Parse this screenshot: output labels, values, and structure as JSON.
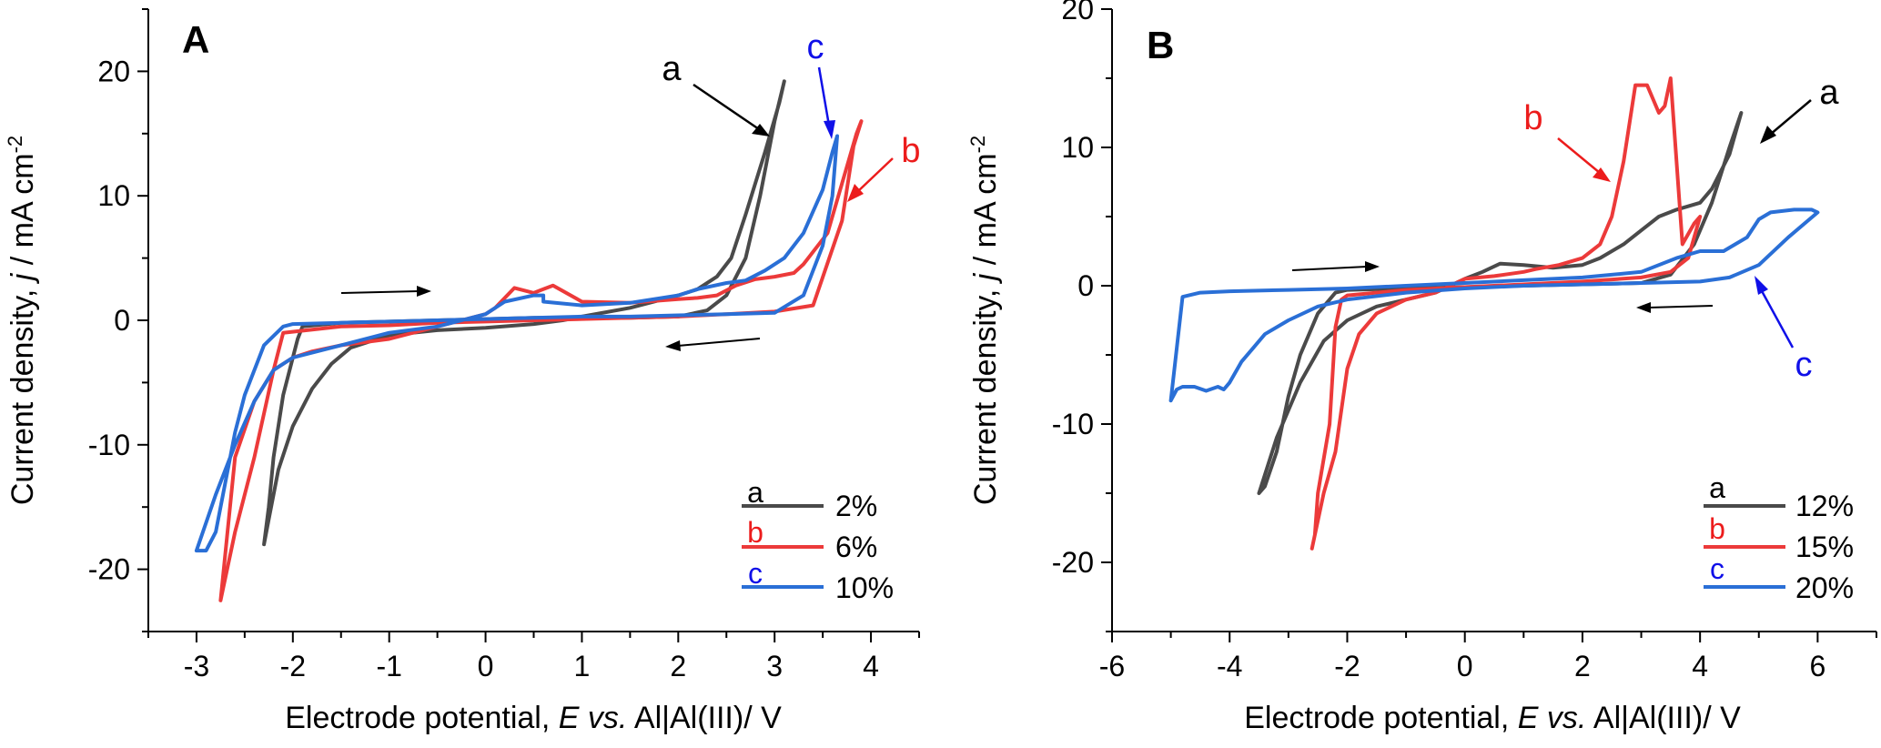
{
  "colors": {
    "a": "#4a4a4a",
    "b": "#ec3a3a",
    "c": "#2a6fd6",
    "c_label": "#1010e8",
    "b_label": "#ec1c1c",
    "a_label": "#000000",
    "arrow": "#000000"
  },
  "chart_data": [
    {
      "type": "line",
      "panel_label": "A",
      "xlabel_prefix": "Electrode potential, ",
      "xlabel_var": "E vs.",
      "xlabel_suffix": " Al|Al(III)/ V",
      "ylabel_prefix": "Current density, ",
      "ylabel_var": "j",
      "ylabel_suffix": " / mA cm",
      "ylabel_sup": "-2",
      "xlim": [
        -3.5,
        4.5
      ],
      "ylim": [
        -25,
        25
      ],
      "xticks": [
        "-3",
        "-2",
        "-1",
        "0",
        "1",
        "2",
        "3",
        "4"
      ],
      "xtick_values": [
        -3,
        -2,
        -1,
        0,
        1,
        2,
        3,
        4
      ],
      "yticks": [
        "-20",
        "-10",
        "0",
        "10",
        "20"
      ],
      "ytick_values": [
        -20,
        -10,
        0,
        10,
        20
      ],
      "legend": [
        {
          "key": "a",
          "label": "2%"
        },
        {
          "key": "b",
          "label": "6%"
        },
        {
          "key": "c",
          "label": "10%"
        }
      ],
      "curve_labels": [
        {
          "key": "a",
          "text": "a"
        },
        {
          "key": "b",
          "text": "b"
        },
        {
          "key": "c",
          "text": "c"
        }
      ],
      "series": [
        {
          "key": "a",
          "x": [
            -2.3,
            -2.25,
            -2.2,
            -2.1,
            -2.0,
            -1.95,
            -1.9,
            -1.5,
            -1.0,
            -0.5,
            0.0,
            0.5,
            1.0,
            1.5,
            2.0,
            2.3,
            2.5,
            2.7,
            2.85,
            3.0,
            3.1,
            3.05,
            2.9,
            2.7,
            2.55,
            2.4,
            2.2,
            2.0,
            1.5,
            1.0,
            0.8,
            0.5,
            0.0,
            -0.5,
            -1.0,
            -1.4,
            -1.6,
            -1.8,
            -2.0,
            -2.15,
            -2.25,
            -2.3
          ],
          "y": [
            -18,
            -15,
            -11,
            -6,
            -3,
            -1.5,
            -0.5,
            -0.2,
            -0.1,
            0.0,
            0.1,
            0.2,
            0.2,
            0.2,
            0.3,
            0.8,
            2.0,
            5.0,
            10.0,
            16.0,
            19.2,
            17.5,
            13.5,
            8.5,
            5.0,
            3.5,
            2.5,
            2.0,
            1.0,
            0.3,
            0.0,
            -0.3,
            -0.6,
            -0.8,
            -1.2,
            -2.2,
            -3.5,
            -5.5,
            -8.5,
            -12,
            -16,
            -18
          ]
        },
        {
          "key": "b",
          "x": [
            -2.75,
            -2.6,
            -2.4,
            -2.2,
            -2.1,
            -1.5,
            -1.0,
            -0.5,
            0.0,
            0.5,
            1.0,
            1.5,
            2.0,
            2.5,
            3.0,
            3.4,
            3.7,
            3.82,
            3.9,
            3.85,
            3.7,
            3.55,
            3.3,
            3.2,
            3.0,
            2.8,
            2.6,
            2.4,
            2.2,
            2.0,
            1.5,
            1.0,
            0.7,
            0.6,
            0.5,
            0.4,
            0.3,
            0.1,
            0.0,
            -0.5,
            -1.0,
            -1.5,
            -1.8,
            -2.0,
            -2.2,
            -2.4,
            -2.6,
            -2.75
          ],
          "y": [
            -22.5,
            -17,
            -11,
            -4,
            -1,
            -0.5,
            -0.4,
            -0.2,
            -0.1,
            0.0,
            0.1,
            0.2,
            0.3,
            0.5,
            0.7,
            1.2,
            8.0,
            14.0,
            16.0,
            15.0,
            11.0,
            7.0,
            4.5,
            3.8,
            3.5,
            3.3,
            2.8,
            2.0,
            1.8,
            1.7,
            1.4,
            1.5,
            2.8,
            2.5,
            2.2,
            2.4,
            2.6,
            1.0,
            0.5,
            -0.5,
            -1.5,
            -2.0,
            -2.5,
            -3.0,
            -4.0,
            -6.5,
            -11,
            -22.5
          ]
        },
        {
          "key": "c",
          "x": [
            -3.0,
            -2.9,
            -2.8,
            -2.7,
            -2.6,
            -2.5,
            -2.3,
            -2.1,
            -2.0,
            -1.5,
            -1.0,
            -0.5,
            0.0,
            0.5,
            1.0,
            1.5,
            2.0,
            2.5,
            3.0,
            3.3,
            3.5,
            3.6,
            3.65,
            3.6,
            3.5,
            3.3,
            3.1,
            2.9,
            2.7,
            2.5,
            2.2,
            2.0,
            1.5,
            1.0,
            0.6,
            0.6,
            0.5,
            0.2,
            0.0,
            -0.5,
            -1.0,
            -1.5,
            -2.0,
            -2.2,
            -2.4,
            -2.6,
            -2.8,
            -3.0
          ],
          "y": [
            -18.5,
            -18.5,
            -17,
            -13,
            -9,
            -6,
            -2,
            -0.5,
            -0.3,
            -0.2,
            -0.1,
            0.0,
            0.1,
            0.2,
            0.3,
            0.3,
            0.4,
            0.5,
            0.6,
            2.0,
            6.0,
            10.0,
            14.8,
            13.5,
            10.5,
            7.0,
            5.0,
            4.0,
            3.2,
            3.0,
            2.5,
            2.0,
            1.4,
            1.2,
            1.5,
            2.0,
            2.0,
            1.5,
            0.5,
            -0.5,
            -1.0,
            -2.0,
            -3.0,
            -4.0,
            -6.5,
            -10,
            -14,
            -18.5
          ]
        }
      ]
    },
    {
      "type": "line",
      "panel_label": "B",
      "xlabel_prefix": "Electrode potential, ",
      "xlabel_var": "E vs.",
      "xlabel_suffix": " Al|Al(III)/ V",
      "ylabel_prefix": "Current density, ",
      "ylabel_var": "j",
      "ylabel_suffix": " / mA cm",
      "ylabel_sup": "-2",
      "xlim": [
        -6,
        7
      ],
      "ylim": [
        -25,
        20
      ],
      "xticks": [
        "-6",
        "-4",
        "-2",
        "0",
        "2",
        "4",
        "6"
      ],
      "xtick_values": [
        -6,
        -4,
        -2,
        0,
        2,
        4,
        6
      ],
      "yticks": [
        "-20",
        "-10",
        "0",
        "10",
        "20"
      ],
      "ytick_values": [
        -20,
        -10,
        0,
        10,
        20
      ],
      "legend": [
        {
          "key": "a",
          "label": "12%"
        },
        {
          "key": "b",
          "label": "15%"
        },
        {
          "key": "c",
          "label": "20%"
        }
      ],
      "curve_labels": [
        {
          "key": "a",
          "text": "a"
        },
        {
          "key": "b",
          "text": "b"
        },
        {
          "key": "c",
          "text": "c"
        }
      ],
      "series": [
        {
          "key": "a",
          "x": [
            -3.5,
            -3.4,
            -3.2,
            -3.0,
            -2.8,
            -2.5,
            -2.2,
            -2.0,
            -1.0,
            0.0,
            1.0,
            2.0,
            3.0,
            3.5,
            3.9,
            4.2,
            4.5,
            4.7,
            4.5,
            4.2,
            4.0,
            3.6,
            3.3,
            3.0,
            2.7,
            2.3,
            2.0,
            1.5,
            1.0,
            0.6,
            0.3,
            0.0,
            -0.5,
            -1.0,
            -1.5,
            -2.0,
            -2.4,
            -2.8,
            -3.2,
            -3.5
          ],
          "y": [
            -15,
            -14.5,
            -12,
            -8,
            -5,
            -2,
            -0.5,
            -0.3,
            -0.2,
            -0.1,
            0.0,
            0.1,
            0.2,
            0.8,
            3.0,
            6.0,
            10.0,
            12.5,
            9.5,
            7.0,
            6.0,
            5.5,
            5.0,
            4.0,
            3.0,
            2.0,
            1.5,
            1.3,
            1.5,
            1.6,
            1.0,
            0.5,
            -0.5,
            -1.0,
            -1.5,
            -2.5,
            -4.0,
            -7.0,
            -11,
            -15
          ]
        },
        {
          "key": "b",
          "x": [
            -2.6,
            -2.55,
            -2.5,
            -2.3,
            -2.2,
            -2.1,
            -2.0,
            -1.0,
            0.0,
            1.0,
            2.0,
            3.0,
            3.5,
            3.8,
            4.0,
            3.9,
            3.7,
            3.5,
            3.4,
            3.3,
            3.1,
            3.0,
            2.9,
            2.7,
            2.5,
            2.3,
            2.0,
            1.6,
            1.2,
            1.0,
            0.5,
            0.0,
            -0.5,
            -1.0,
            -1.5,
            -1.8,
            -2.0,
            -2.2,
            -2.4,
            -2.6
          ],
          "y": [
            -19,
            -18,
            -15,
            -10,
            -3,
            -1,
            -0.7,
            -0.3,
            -0.1,
            0.1,
            0.3,
            0.6,
            1.0,
            2.0,
            5.0,
            4.5,
            3.0,
            15.0,
            13.0,
            12.5,
            14.5,
            14.5,
            14.5,
            9.0,
            5.0,
            3.0,
            2.0,
            1.5,
            1.2,
            1.0,
            0.7,
            0.5,
            -0.5,
            -1.0,
            -2.0,
            -3.5,
            -6.0,
            -12,
            -15,
            -19
          ]
        },
        {
          "key": "c",
          "x": [
            -5.0,
            -4.9,
            -4.8,
            -4.6,
            -4.4,
            -4.2,
            -4.1,
            -4.0,
            -3.8,
            -3.6,
            -3.4,
            -3.0,
            -2.5,
            -2.0,
            -1.0,
            0.0,
            1.0,
            2.0,
            3.0,
            4.0,
            4.5,
            5.0,
            5.5,
            6.0,
            5.9,
            5.6,
            5.2,
            5.0,
            4.8,
            4.6,
            4.4,
            4.2,
            4.0,
            3.6,
            3.0,
            2.0,
            1.0,
            0.0,
            -1.0,
            -2.0,
            -3.0,
            -4.0,
            -4.5,
            -4.8,
            -5.0
          ],
          "y": [
            -8.3,
            -7.5,
            -7.3,
            -7.3,
            -7.6,
            -7.3,
            -7.5,
            -7.0,
            -5.5,
            -4.5,
            -3.5,
            -2.5,
            -1.5,
            -1.0,
            -0.5,
            -0.2,
            0.0,
            0.1,
            0.2,
            0.3,
            0.6,
            1.5,
            3.5,
            5.3,
            5.5,
            5.5,
            5.3,
            4.8,
            3.5,
            3.0,
            2.5,
            2.5,
            2.5,
            2.0,
            1.0,
            0.6,
            0.4,
            0.2,
            0.0,
            -0.2,
            -0.3,
            -0.4,
            -0.5,
            -0.8,
            -8.3
          ]
        }
      ]
    }
  ]
}
